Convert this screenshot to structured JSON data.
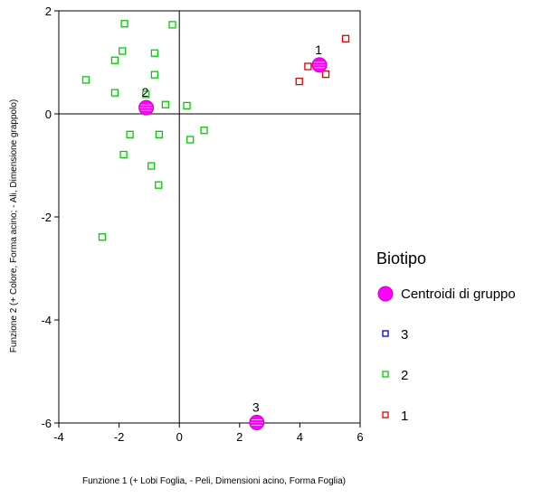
{
  "chart_data": {
    "type": "scatter",
    "xlabel": "Funzione 1 (+ Lobi Foglia, - Peli, Dimensioni acino, Forma Foglia)",
    "ylabel": "Funzione 2 (+  Colore, Forma acino; - Ali, Dimensione grappolo)",
    "xlim": [
      -4,
      6
    ],
    "ylim": [
      -6,
      2
    ],
    "x_ticks": [
      "-4",
      "-2",
      "0",
      "2",
      "4",
      "6"
    ],
    "y_ticks": [
      "2",
      "0",
      "-2",
      "-4",
      "-6"
    ],
    "x_tick_values": [
      -4,
      -2,
      0,
      2,
      4,
      6
    ],
    "y_tick_values": [
      2,
      0,
      -2,
      -4,
      -6
    ],
    "reference_lines": {
      "x": 0,
      "y": 0
    },
    "grid": false,
    "legend": {
      "title": "Biotipo",
      "placement": "right",
      "entries": [
        {
          "label": "Centroidi di gruppo",
          "marker": "centroid",
          "color": "#ff00ff"
        },
        {
          "label": "3",
          "marker": "square",
          "color": "#0000cc"
        },
        {
          "label": "2",
          "marker": "square",
          "color": "#00cc00"
        },
        {
          "label": "1",
          "marker": "square",
          "color": "#dd0000"
        }
      ]
    },
    "series": [
      {
        "name": "1",
        "color": "#dd0000",
        "marker": "square",
        "points": [
          {
            "x": 5.52,
            "y": 1.46
          },
          {
            "x": 4.27,
            "y": 0.92
          },
          {
            "x": 4.86,
            "y": 0.77
          },
          {
            "x": 3.98,
            "y": 0.63
          }
        ]
      },
      {
        "name": "2",
        "color": "#00cc00",
        "marker": "square",
        "points": [
          {
            "x": -1.82,
            "y": 1.75
          },
          {
            "x": -0.23,
            "y": 1.73
          },
          {
            "x": -1.89,
            "y": 1.22
          },
          {
            "x": -0.82,
            "y": 1.18
          },
          {
            "x": -2.14,
            "y": 1.04
          },
          {
            "x": -0.82,
            "y": 0.76
          },
          {
            "x": -3.1,
            "y": 0.66
          },
          {
            "x": -2.14,
            "y": 0.41
          },
          {
            "x": -1.11,
            "y": 0.38
          },
          {
            "x": -0.46,
            "y": 0.18
          },
          {
            "x": 0.25,
            "y": 0.16
          },
          {
            "x": 0.82,
            "y": -0.32
          },
          {
            "x": -1.64,
            "y": -0.4
          },
          {
            "x": -0.67,
            "y": -0.4
          },
          {
            "x": 0.36,
            "y": -0.5
          },
          {
            "x": -1.85,
            "y": -0.79
          },
          {
            "x": -0.93,
            "y": -1.01
          },
          {
            "x": -0.69,
            "y": -1.38
          },
          {
            "x": -2.56,
            "y": -2.39
          }
        ]
      },
      {
        "name": "3",
        "color": "#0000cc",
        "marker": "square",
        "points": [
          {
            "x": 2.57,
            "y": -5.99
          }
        ]
      }
    ],
    "centroids": [
      {
        "label": "1",
        "x": 4.65,
        "y": 0.95
      },
      {
        "label": "2",
        "x": -1.1,
        "y": 0.12
      },
      {
        "label": "3",
        "x": 2.57,
        "y": -5.99
      }
    ],
    "centroid_color": "#ff00ff"
  }
}
